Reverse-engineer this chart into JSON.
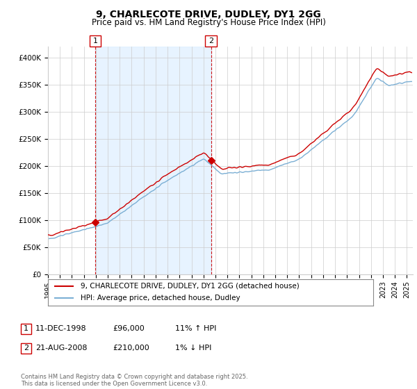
{
  "title_line1": "9, CHARLECOTE DRIVE, DUDLEY, DY1 2GG",
  "title_line2": "Price paid vs. HM Land Registry's House Price Index (HPI)",
  "ylim": [
    0,
    420000
  ],
  "yticks": [
    0,
    50000,
    100000,
    150000,
    200000,
    250000,
    300000,
    350000,
    400000
  ],
  "ytick_labels": [
    "£0",
    "£50K",
    "£100K",
    "£150K",
    "£200K",
    "£250K",
    "£300K",
    "£350K",
    "£400K"
  ],
  "sale1_date_num": 1998.95,
  "sale1_price": 96000,
  "sale1_label": "1",
  "sale2_date_num": 2008.64,
  "sale2_price": 210000,
  "sale2_label": "2",
  "hpi_line_color": "#7bafd4",
  "price_line_color": "#cc0000",
  "fill_color": "#ddeeff",
  "sale_marker_color": "#cc0000",
  "vline_color": "#cc0000",
  "grid_color": "#cccccc",
  "background_color": "#ffffff",
  "legend_label_price": "9, CHARLECOTE DRIVE, DUDLEY, DY1 2GG (detached house)",
  "legend_label_hpi": "HPI: Average price, detached house, Dudley",
  "note1_label": "1",
  "note1_date": "11-DEC-1998",
  "note1_price": "£96,000",
  "note1_hpi": "11% ↑ HPI",
  "note2_label": "2",
  "note2_date": "21-AUG-2008",
  "note2_price": "£210,000",
  "note2_hpi": "1% ↓ HPI",
  "footer": "Contains HM Land Registry data © Crown copyright and database right 2025.\nThis data is licensed under the Open Government Licence v3.0."
}
